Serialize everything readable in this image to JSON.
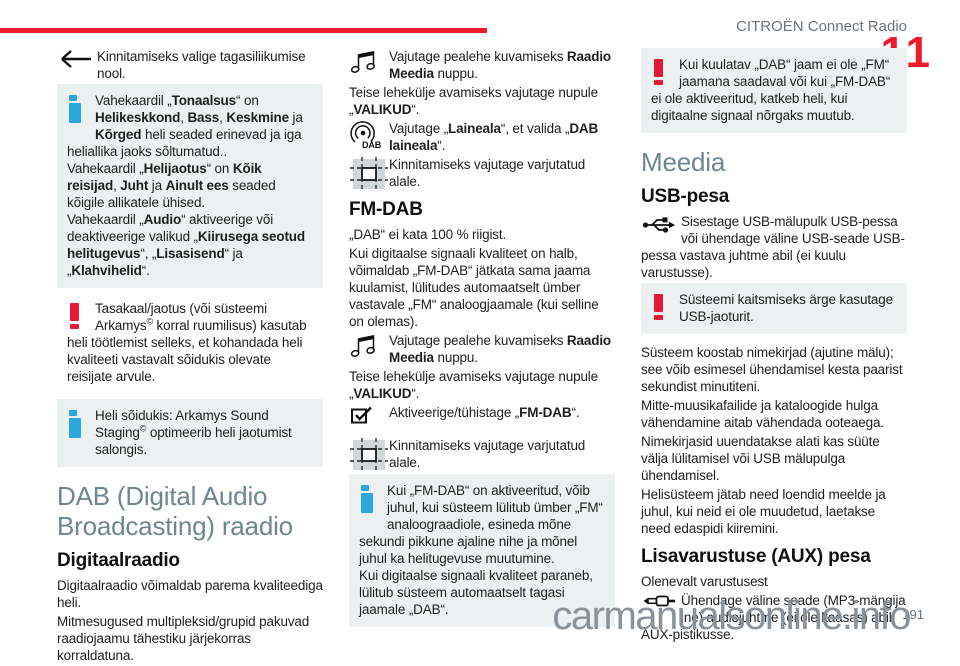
{
  "header": {
    "title": "CITROËN Connect Radio",
    "chapter": "11"
  },
  "footer": {
    "watermark": "carmanualsonline.info",
    "page_number": "191"
  },
  "colors": {
    "accent_red": "#ec1c2d",
    "heading_gray_blue": "#6f8590",
    "info_icon_blue": "#2aa7dc",
    "warning_icon_red": "#e41a38",
    "box_background": "#edf0f1",
    "watermark_gray": "#8a9198"
  },
  "icons": {
    "back": "back-arrow-icon",
    "info": "info-icon",
    "warning": "warning-exclamation-icon",
    "radio_media": "music-notes-icon",
    "dab_band": "dab-broadcast-icon",
    "confirm_area": "shaded-area-icon",
    "checkbox": "checkbox-checked-icon",
    "usb": "usb-icon",
    "aux": "aux-jack-icon"
  },
  "left": {
    "back_instruction": [
      {
        "t": "Kinnitamiseks valige tagasiliikumise nool."
      }
    ],
    "tone_box": {
      "p1": [
        {
          "t": "Vahekaardil „"
        },
        {
          "t": "Tonaalsus",
          "b": true
        },
        {
          "t": "“ on "
        },
        {
          "t": "Helikeskkond",
          "b": true
        },
        {
          "t": ", "
        },
        {
          "t": "Bass",
          "b": true
        },
        {
          "t": ", "
        },
        {
          "t": "Keskmine",
          "b": true
        },
        {
          "t": " ja "
        },
        {
          "t": "Kõrged",
          "b": true
        },
        {
          "t": " heli seaded erinevad ja iga heliallika jaoks sõltumatud.."
        }
      ],
      "p2": [
        {
          "t": "Vahekaardil „"
        },
        {
          "t": "Helijaotus",
          "b": true
        },
        {
          "t": "“ on "
        },
        {
          "t": "Kõik reisijad",
          "b": true
        },
        {
          "t": ", "
        },
        {
          "t": "Juht",
          "b": true
        },
        {
          "t": " ja "
        },
        {
          "t": "Ainult ees",
          "b": true
        },
        {
          "t": " seaded kõigile allikatele ühised."
        }
      ],
      "p3": [
        {
          "t": "Vahekaardil „"
        },
        {
          "t": "Audio",
          "b": true
        },
        {
          "t": "“ aktiveerige või deaktiveerige valikud „"
        },
        {
          "t": "Kiirusega seotud helitugevus",
          "b": true
        },
        {
          "t": "“, „"
        },
        {
          "t": "Lisasisend",
          "b": true
        },
        {
          "t": "“ ja „"
        },
        {
          "t": "Klahvihelid",
          "b": true
        },
        {
          "t": "“."
        }
      ]
    },
    "balance_warning": [
      {
        "t": "Tasakaal/jaotus (või süsteemi Arkamys"
      },
      {
        "t": "©",
        "s": true
      },
      {
        "t": " korral ruumilisus) kasutab heli töötlemist selleks, et kohandada heli kvaliteeti vastavalt sõidukis olevate reisijate arvule."
      }
    ],
    "arkamys_box": [
      {
        "t": "Heli sõidukis: Arkamys Sound Staging"
      },
      {
        "t": "©",
        "s": true
      },
      {
        "t": " optimeerib heli jaotumist salongis."
      }
    ],
    "dab_title": "DAB (Digital Audio Broadcasting) raadio",
    "digital_title": "Digitaalraadio",
    "digital_p1": [
      {
        "t": "Digitaalraadio võimaldab parema kvaliteediga heli."
      }
    ],
    "digital_p2": [
      {
        "t": "Mitmesugused multipleksid/grupid pakuvad raadiojaamu tähestiku järjekorras korraldatuna."
      }
    ]
  },
  "middle": {
    "radio_media_1": [
      {
        "t": "Vajutage pealehe kuvamiseks "
      },
      {
        "t": "Raadio Meedia",
        "b": true
      },
      {
        "t": " nuppu."
      }
    ],
    "valikud_1": [
      {
        "t": "Teise lehekülje avamiseks vajutage nupule „"
      },
      {
        "t": "VALIKUD",
        "b": true
      },
      {
        "t": "“."
      }
    ],
    "laineala": [
      {
        "t": "Vajutage „"
      },
      {
        "t": "Laineala",
        "b": true
      },
      {
        "t": "“, et valida „"
      },
      {
        "t": "DAB laineala",
        "b": true
      },
      {
        "t": "“."
      }
    ],
    "confirm_1": [
      {
        "t": "Kinnitamiseks vajutage varjutatud alale."
      }
    ],
    "fmdab_title": "FM-DAB",
    "fmdab_p1": [
      {
        "t": "„DAB“ ei kata 100 % riigist."
      }
    ],
    "fmdab_p2": [
      {
        "t": "Kui digitaalse signaali kvaliteet on halb, võimaldab „FM-DAB“ jätkata sama jaama kuulamist, lülitudes automaatselt ümber vastavale „FM“ analoogjaamale (kui selline on olemas)."
      }
    ],
    "radio_media_2": [
      {
        "t": "Vajutage pealehe kuvamiseks "
      },
      {
        "t": "Raadio Meedia",
        "b": true
      },
      {
        "t": " nuppu."
      }
    ],
    "valikud_2": [
      {
        "t": "Teise lehekülje avamiseks vajutage nupule „"
      },
      {
        "t": "VALIKUD",
        "b": true
      },
      {
        "t": "“."
      }
    ],
    "activate": [
      {
        "t": "Aktiveerige/tühistage „"
      },
      {
        "t": "FM-DAB",
        "b": true
      },
      {
        "t": "“."
      }
    ],
    "confirm_2": [
      {
        "t": "Kinnitamiseks vajutage varjutatud alale."
      }
    ],
    "fmdab_note": {
      "p1": [
        {
          "t": "Kui „FM-DAB“ on aktiveeritud, võib juhul, kui süsteem lülitub ümber „FM“ analoograadiole, esineda mõne sekundi pikkune ajaline nihe ja mõnel juhul ka helitugevuse muutumine."
        }
      ],
      "p2": [
        {
          "t": "Kui digitaalse signaali kvaliteet paraneb, lülitub süsteem automaatselt tagasi jaamale „DAB“."
        }
      ]
    }
  },
  "right": {
    "dab_warning": [
      {
        "t": "Kui kuulatav „DAB“ jaam ei ole „FM“ jaamana saadaval või kui „FM-DAB“ ei ole aktiveeritud, katkeb heli, kui digitaalne signaal nõrgaks muutub."
      }
    ],
    "media_title": "Meedia",
    "usb_title": "USB-pesa",
    "usb_instruction": [
      {
        "t": "Sisestage USB-mälupulk USB-pessa või ühendage väline USB-seade USB-pessa vastava juhtme abil (ei kuulu varustusse)."
      }
    ],
    "usb_warning": [
      {
        "t": "Süsteemi kaitsmiseks ärge kasutage USB-jaoturit."
      }
    ],
    "usb_p1": [
      {
        "t": "Süsteem koostab nimekirjad (ajutine mälu); see võib esimesel ühendamisel kesta paarist sekundist minutiteni."
      }
    ],
    "usb_p2": [
      {
        "t": "Mitte-muusikafailide ja kataloogide hulga vähendamine aitab vähendada ooteaega."
      }
    ],
    "usb_p3": [
      {
        "t": "Nimekirjasid uuendatakse alati kas süüte välja lülitamisel või USB mälupulga ühendamisel."
      }
    ],
    "usb_p4": [
      {
        "t": "Helisüsteem jätab need loendid meelde ja juhul, kui neid ei ole muudetud, laetakse need edaspidi kiiremini."
      }
    ],
    "aux_title": "Lisavarustuse (AUX) pesa",
    "aux_note": [
      {
        "t": "Olenevalt varustusest"
      }
    ],
    "aux_instruction": [
      {
        "t": "Ühendage väline seade (MP3-mängija jne) audiojuhtme (ei ole kaasas) abil AUX-pistikusse."
      }
    ]
  }
}
